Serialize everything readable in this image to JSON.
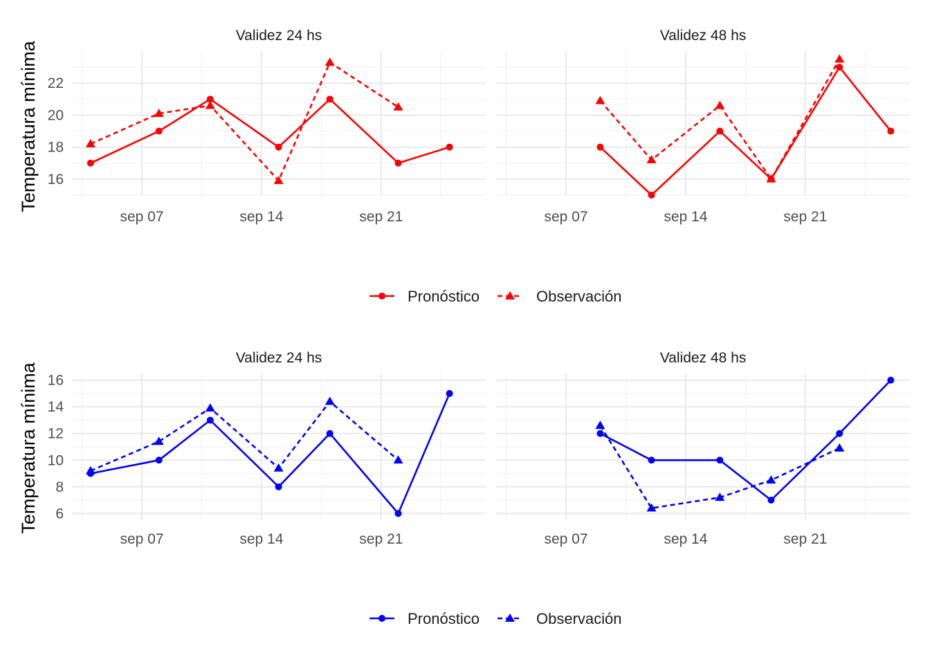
{
  "legend_labels": {
    "forecast": "Pronóstico",
    "observation": "Observación"
  },
  "chart_data": [
    {
      "type": "line",
      "ylabel": "Temperatura mínima",
      "color": "#ff0000",
      "x_ticks": [
        {
          "date": "2024-09-07",
          "label": "sep 07"
        },
        {
          "date": "2024-09-14",
          "label": "sep 14"
        },
        {
          "date": "2024-09-21",
          "label": "sep 21"
        }
      ],
      "ylim": [
        15,
        24
      ],
      "y_ticks": [
        16,
        18,
        20,
        22
      ],
      "facets": [
        {
          "title": "Validez 24 hs",
          "series": [
            {
              "name": "Pronóstico",
              "style": "solid",
              "marker": "circle",
              "x": [
                "2024-09-04",
                "2024-09-08",
                "2024-09-11",
                "2024-09-15",
                "2024-09-18",
                "2024-09-22",
                "2024-09-25"
              ],
              "values": [
                17,
                19,
                21,
                18,
                21,
                17,
                18
              ]
            },
            {
              "name": "Observación",
              "style": "dashed",
              "marker": "triangle",
              "x": [
                "2024-09-04",
                "2024-09-08",
                "2024-09-11",
                "2024-09-15",
                "2024-09-18",
                "2024-09-22"
              ],
              "values": [
                18.2,
                20.1,
                20.6,
                15.9,
                23.3,
                20.5
              ]
            }
          ]
        },
        {
          "title": "Validez 48 hs",
          "series": [
            {
              "name": "Pronóstico",
              "style": "solid",
              "marker": "circle",
              "x": [
                "2024-09-09",
                "2024-09-12",
                "2024-09-16",
                "2024-09-19",
                "2024-09-23",
                "2024-09-26"
              ],
              "values": [
                18,
                15,
                19,
                16,
                23,
                19
              ]
            },
            {
              "name": "Observación",
              "style": "dashed",
              "marker": "triangle",
              "x": [
                "2024-09-09",
                "2024-09-12",
                "2024-09-16",
                "2024-09-19",
                "2024-09-23"
              ],
              "values": [
                20.9,
                17.2,
                20.6,
                16,
                23.5
              ]
            }
          ]
        }
      ]
    },
    {
      "type": "line",
      "ylabel": "Temperatura mínima",
      "color": "#0000ff",
      "x_ticks": [
        {
          "date": "2024-09-07",
          "label": "sep 07"
        },
        {
          "date": "2024-09-14",
          "label": "sep 14"
        },
        {
          "date": "2024-09-21",
          "label": "sep 21"
        }
      ],
      "ylim": [
        5.5,
        16.5
      ],
      "y_ticks": [
        6,
        8,
        10,
        12,
        14,
        16
      ],
      "facets": [
        {
          "title": "Validez 24 hs",
          "series": [
            {
              "name": "Pronóstico",
              "style": "solid",
              "marker": "circle",
              "x": [
                "2024-09-04",
                "2024-09-08",
                "2024-09-11",
                "2024-09-15",
                "2024-09-18",
                "2024-09-22",
                "2024-09-25"
              ],
              "values": [
                9,
                10,
                13,
                8,
                12,
                6,
                15
              ]
            },
            {
              "name": "Observación",
              "style": "dashed",
              "marker": "triangle",
              "x": [
                "2024-09-04",
                "2024-09-08",
                "2024-09-11",
                "2024-09-15",
                "2024-09-18",
                "2024-09-22"
              ],
              "values": [
                9.2,
                11.4,
                13.9,
                9.4,
                14.4,
                10
              ]
            }
          ]
        },
        {
          "title": "Validez 48 hs",
          "series": [
            {
              "name": "Pronóstico",
              "style": "solid",
              "marker": "circle",
              "x": [
                "2024-09-09",
                "2024-09-12",
                "2024-09-16",
                "2024-09-19",
                "2024-09-23",
                "2024-09-26"
              ],
              "values": [
                12,
                10,
                10,
                7,
                12,
                16
              ]
            },
            {
              "name": "Observación",
              "style": "dashed",
              "marker": "triangle",
              "x": [
                "2024-09-09",
                "2024-09-12",
                "2024-09-16",
                "2024-09-19",
                "2024-09-23"
              ],
              "values": [
                12.6,
                6.4,
                7.2,
                8.5,
                10.9
              ]
            }
          ]
        }
      ]
    }
  ]
}
